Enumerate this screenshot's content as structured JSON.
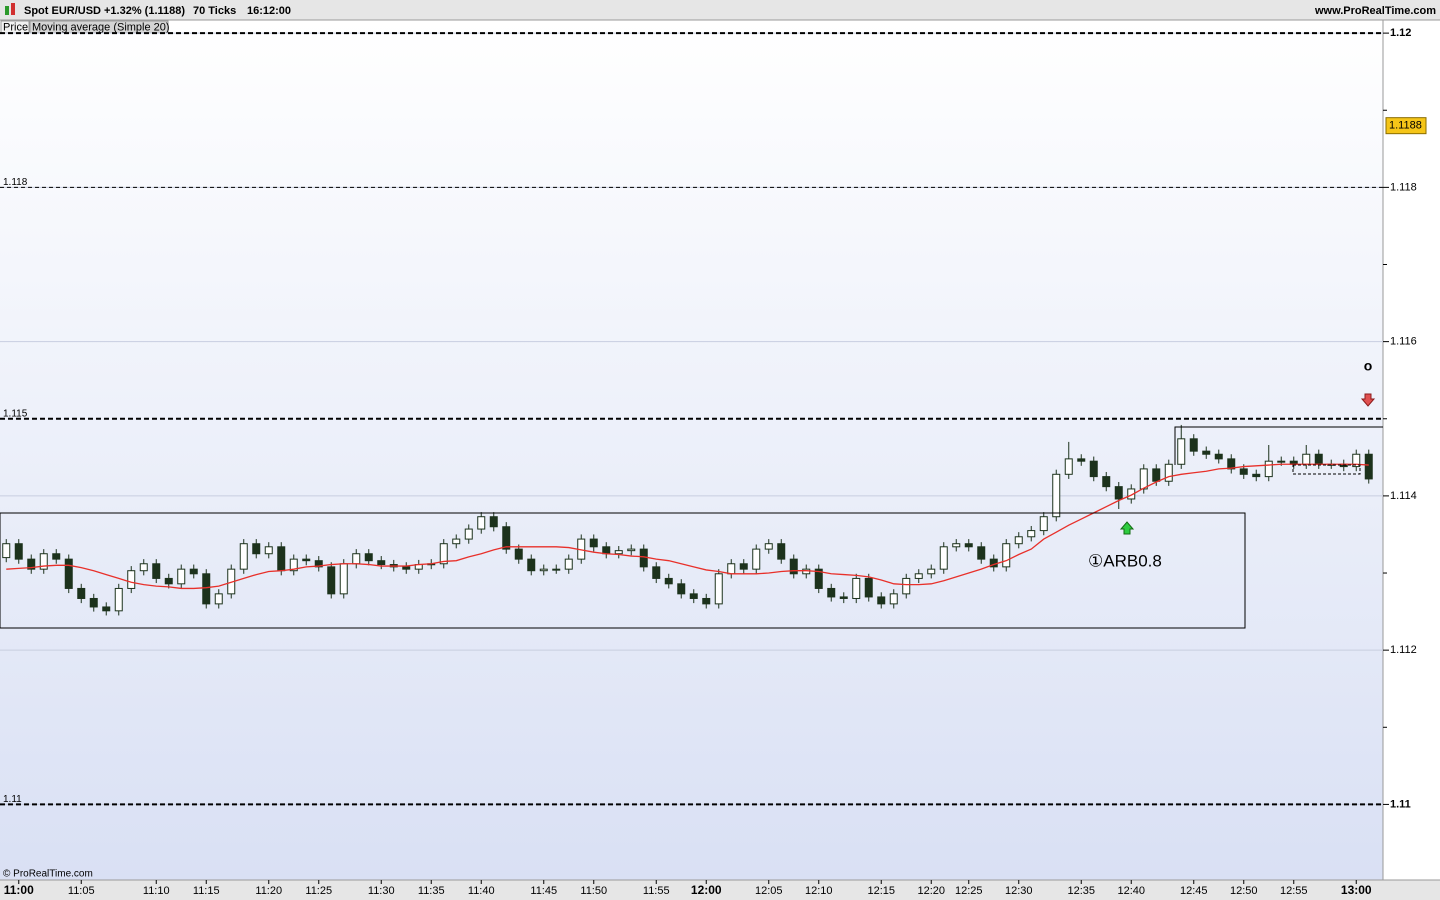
{
  "chart_data": {
    "type": "candlestick",
    "instrument": "Spot EUR/USD",
    "change": "+1.32% (1.1188)",
    "ticks_info": "70 Ticks",
    "time": "16:12:00",
    "site": "www.ProRealTime.com",
    "copyright": "© ProRealTime.com",
    "annotations": [
      "①ARB0.8",
      "o"
    ],
    "categories": [
      null,
      "11:00",
      null,
      null,
      null,
      null,
      "11:05",
      null,
      null,
      null,
      null,
      null,
      "11:10",
      null,
      null,
      null,
      "11:15",
      null,
      null,
      null,
      null,
      "11:20",
      null,
      null,
      null,
      "11:25",
      null,
      null,
      null,
      null,
      "11:30",
      null,
      null,
      null,
      "11:35",
      null,
      null,
      null,
      "11:40",
      null,
      null,
      null,
      null,
      "11:45",
      null,
      null,
      null,
      "11:50",
      null,
      null,
      null,
      null,
      "11:55",
      null,
      null,
      null,
      "12:00",
      null,
      null,
      null,
      null,
      "12:05",
      null,
      null,
      null,
      "12:10",
      null,
      null,
      null,
      null,
      "12:15",
      null,
      null,
      null,
      "12:20",
      null,
      null,
      "12:25",
      null,
      null,
      null,
      "12:30",
      null,
      null,
      null,
      null,
      "12:35",
      null,
      null,
      null,
      "12:40",
      null,
      null,
      null,
      null,
      "12:45",
      null,
      null,
      null,
      "12:50",
      null,
      null,
      null,
      "12:55",
      null,
      null,
      null,
      null,
      "13:00",
      null
    ],
    "candles": {
      "name": "Price",
      "up_color": "#ffffff",
      "down_color": "#1c321c",
      "edge_color": "#1c321c",
      "open": [
        1.1132,
        1.11338,
        1.11318,
        1.11305,
        1.11325,
        1.11318,
        1.1128,
        1.11267,
        1.11256,
        1.11251,
        1.1128,
        1.11303,
        1.11312,
        1.11293,
        1.11286,
        1.11305,
        1.11299,
        1.1126,
        1.11273,
        1.11305,
        1.11338,
        1.11325,
        1.11334,
        1.11303,
        1.11318,
        1.11316,
        1.11308,
        1.11273,
        1.11312,
        1.11325,
        1.11316,
        1.11311,
        1.11308,
        1.11305,
        1.11311,
        1.11312,
        1.11338,
        1.11344,
        1.11357,
        1.11373,
        1.1136,
        1.11331,
        1.11318,
        1.11303,
        1.11305,
        1.11305,
        1.11318,
        1.11344,
        1.11334,
        1.11325,
        1.11329,
        1.11331,
        1.11308,
        1.11293,
        1.11286,
        1.11273,
        1.11267,
        1.1126,
        1.11299,
        1.11312,
        1.11305,
        1.11331,
        1.11338,
        1.11318,
        1.11299,
        1.11305,
        1.1128,
        1.11269,
        1.11267,
        1.11293,
        1.11269,
        1.1126,
        1.11273,
        1.11293,
        1.11299,
        1.11305,
        1.11334,
        1.11338,
        1.11334,
        1.11318,
        1.11308,
        1.11338,
        1.11347,
        1.11355,
        1.11373,
        1.11428,
        1.11448,
        1.11445,
        1.11425,
        1.11412,
        1.11396,
        1.11409,
        1.11435,
        1.11419,
        1.11441,
        1.11474,
        1.11458,
        1.11454,
        1.11448,
        1.11435,
        1.11428,
        1.11425,
        1.11445,
        1.11445,
        1.11441,
        1.11454,
        1.11441,
        1.11441,
        1.11438,
        1.11454
      ],
      "high": [
        1.11344,
        1.11344,
        1.11324,
        1.11331,
        1.11331,
        1.11324,
        1.11286,
        1.11273,
        1.11262,
        1.11286,
        1.11309,
        1.11318,
        1.11318,
        1.11299,
        1.11311,
        1.11311,
        1.11305,
        1.11279,
        1.11311,
        1.11344,
        1.11344,
        1.1134,
        1.1134,
        1.11324,
        1.11324,
        1.11322,
        1.11314,
        1.11318,
        1.11331,
        1.11331,
        1.11322,
        1.11317,
        1.11314,
        1.11317,
        1.11318,
        1.11344,
        1.1135,
        1.11363,
        1.11379,
        1.11379,
        1.11366,
        1.11337,
        1.11324,
        1.11311,
        1.11311,
        1.11324,
        1.1135,
        1.1135,
        1.1134,
        1.11335,
        1.11337,
        1.11337,
        1.11314,
        1.11299,
        1.11292,
        1.11279,
        1.11273,
        1.11305,
        1.11318,
        1.11318,
        1.11337,
        1.11344,
        1.11344,
        1.11324,
        1.11311,
        1.11311,
        1.11286,
        1.11275,
        1.11299,
        1.11299,
        1.11275,
        1.11279,
        1.11299,
        1.11305,
        1.11311,
        1.1134,
        1.11344,
        1.11344,
        1.1134,
        1.11324,
        1.11344,
        1.11353,
        1.11361,
        1.11379,
        1.11434,
        1.1147,
        1.11454,
        1.11451,
        1.11431,
        1.11418,
        1.11415,
        1.11441,
        1.11441,
        1.11447,
        1.11492,
        1.1148,
        1.11464,
        1.1146,
        1.11454,
        1.11441,
        1.11434,
        1.11466,
        1.11451,
        1.11451,
        1.11466,
        1.1146,
        1.11447,
        1.11447,
        1.1146,
        1.1146
      ],
      "low": [
        1.11314,
        1.11312,
        1.11299,
        1.11299,
        1.11312,
        1.11274,
        1.11261,
        1.1125,
        1.11245,
        1.11245,
        1.11274,
        1.11297,
        1.11287,
        1.1128,
        1.1128,
        1.11293,
        1.11254,
        1.11254,
        1.11267,
        1.11299,
        1.11319,
        1.11319,
        1.11297,
        1.11297,
        1.1131,
        1.11302,
        1.11267,
        1.11267,
        1.11306,
        1.1131,
        1.11305,
        1.11302,
        1.11299,
        1.11299,
        1.11305,
        1.11306,
        1.11332,
        1.11338,
        1.11351,
        1.11354,
        1.11325,
        1.11312,
        1.11297,
        1.11297,
        1.11299,
        1.11299,
        1.11312,
        1.11328,
        1.11319,
        1.11319,
        1.11323,
        1.11302,
        1.11287,
        1.1128,
        1.11267,
        1.11261,
        1.11254,
        1.11254,
        1.11293,
        1.11299,
        1.11299,
        1.11325,
        1.11312,
        1.11293,
        1.11293,
        1.11274,
        1.11263,
        1.11261,
        1.11261,
        1.11263,
        1.11254,
        1.11254,
        1.11267,
        1.11287,
        1.11293,
        1.11299,
        1.11328,
        1.11328,
        1.11312,
        1.11302,
        1.11302,
        1.11332,
        1.11341,
        1.11349,
        1.11367,
        1.11422,
        1.11439,
        1.11419,
        1.11406,
        1.11383,
        1.1139,
        1.11403,
        1.11413,
        1.11413,
        1.11435,
        1.11452,
        1.11448,
        1.11442,
        1.11429,
        1.11422,
        1.11419,
        1.11419,
        1.11439,
        1.11435,
        1.11435,
        1.11435,
        1.11435,
        1.11432,
        1.11432,
        1.11416
      ],
      "close": [
        1.11338,
        1.11318,
        1.11305,
        1.11325,
        1.11318,
        1.1128,
        1.11267,
        1.11256,
        1.11251,
        1.1128,
        1.11303,
        1.11312,
        1.11293,
        1.11286,
        1.11305,
        1.11299,
        1.1126,
        1.11273,
        1.11305,
        1.11338,
        1.11325,
        1.11334,
        1.11303,
        1.11318,
        1.11316,
        1.11308,
        1.11273,
        1.11312,
        1.11325,
        1.11316,
        1.11311,
        1.11308,
        1.11305,
        1.11311,
        1.11312,
        1.11338,
        1.11344,
        1.11357,
        1.11373,
        1.1136,
        1.11331,
        1.11318,
        1.11303,
        1.11305,
        1.11305,
        1.11318,
        1.11344,
        1.11334,
        1.11325,
        1.11329,
        1.11331,
        1.11308,
        1.11293,
        1.11286,
        1.11273,
        1.11267,
        1.1126,
        1.11299,
        1.11312,
        1.11305,
        1.11331,
        1.11338,
        1.11318,
        1.11299,
        1.11305,
        1.1128,
        1.11269,
        1.11267,
        1.11293,
        1.11269,
        1.1126,
        1.11273,
        1.11293,
        1.11299,
        1.11305,
        1.11334,
        1.11338,
        1.11334,
        1.11318,
        1.11308,
        1.11338,
        1.11347,
        1.11355,
        1.11373,
        1.11428,
        1.11448,
        1.11445,
        1.11425,
        1.11412,
        1.11396,
        1.11409,
        1.11435,
        1.11419,
        1.11441,
        1.11474,
        1.11458,
        1.11454,
        1.11448,
        1.11435,
        1.11428,
        1.11425,
        1.11445,
        1.11445,
        1.11441,
        1.11454,
        1.11441,
        1.11441,
        1.11438,
        1.11454,
        1.11422
      ]
    },
    "series": [
      {
        "name": "Moving average (Simple 20)",
        "color": "#e8302a",
        "values": [
          1.11305,
          1.11306,
          1.11307,
          1.11309,
          1.1131,
          1.1131,
          1.11307,
          1.11303,
          1.11298,
          1.11293,
          1.11288,
          1.11285,
          1.11283,
          1.11282,
          1.1128,
          1.1128,
          1.11281,
          1.11283,
          1.11288,
          1.11293,
          1.11298,
          1.11302,
          1.11303,
          1.11305,
          1.11308,
          1.11309,
          1.11311,
          1.11312,
          1.11312,
          1.11311,
          1.11309,
          1.11309,
          1.11309,
          1.11311,
          1.11312,
          1.11315,
          1.11316,
          1.11321,
          1.11325,
          1.1133,
          1.11334,
          1.11334,
          1.11334,
          1.11334,
          1.11334,
          1.11333,
          1.1133,
          1.11327,
          1.11325,
          1.11324,
          1.11322,
          1.11321,
          1.11318,
          1.11316,
          1.11312,
          1.11308,
          1.11304,
          1.11302,
          1.11299,
          1.11299,
          1.11299,
          1.113,
          1.11302,
          1.11303,
          1.11303,
          1.11302,
          1.11299,
          1.11298,
          1.11297,
          1.11295,
          1.11291,
          1.11286,
          1.11285,
          1.11285,
          1.11286,
          1.1129,
          1.11295,
          1.113,
          1.11305,
          1.11311,
          1.11316,
          1.11324,
          1.11331,
          1.11344,
          1.11353,
          1.11362,
          1.1137,
          1.11378,
          1.11386,
          1.11394,
          1.11401,
          1.1141,
          1.11418,
          1.11425,
          1.11428,
          1.1143,
          1.11432,
          1.11435,
          1.11436,
          1.11438,
          1.11439,
          1.1144,
          1.11441,
          1.11441,
          1.11441,
          1.11441,
          1.11441,
          1.11441,
          1.11441,
          1.1144
        ]
      }
    ],
    "ylim": [
      1.10902,
      1.12017
    ],
    "yticks": [
      1.12,
      1.118,
      1.116,
      1.114,
      1.112,
      1.11
    ],
    "yticks_minor": [
      1.119,
      1.117,
      1.115,
      1.113,
      1.111
    ],
    "grid": true,
    "last_price": 1.1188,
    "last_price_color": "#f5c518",
    "hlines": [
      {
        "value": 1.12,
        "weight": "bold",
        "labeled": false
      },
      {
        "value": 1.118,
        "weight": "thin",
        "labeled": true
      },
      {
        "value": 1.115,
        "weight": "bold",
        "labeled": true
      },
      {
        "value": 1.11,
        "weight": "bold",
        "labeled": true
      }
    ]
  }
}
